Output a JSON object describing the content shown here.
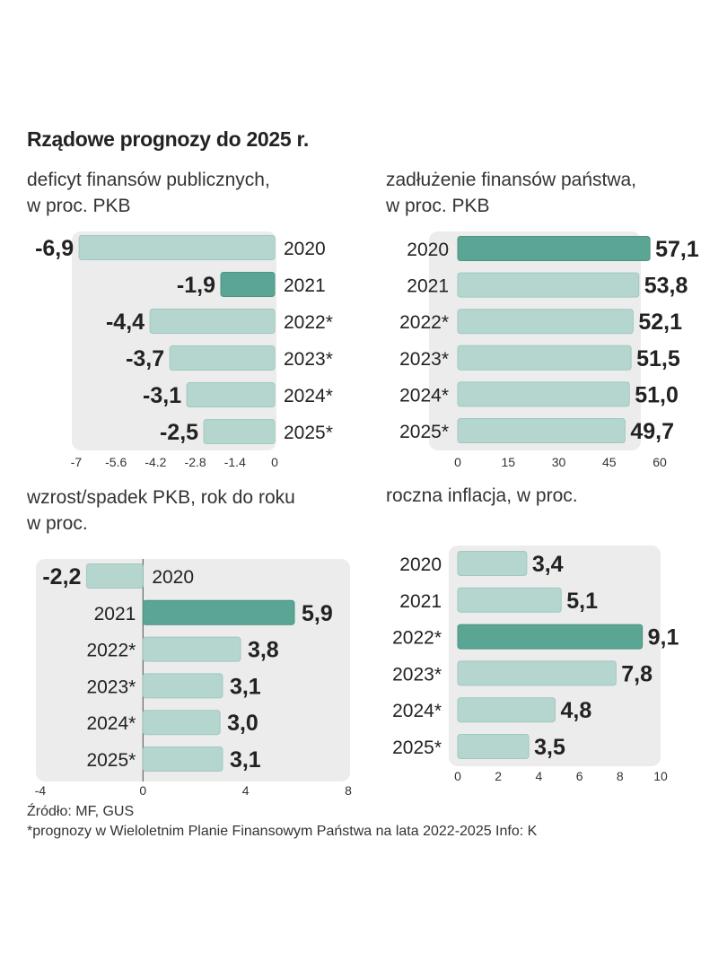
{
  "title": "Rządowe prognozy do 2025 r.",
  "palette": {
    "bar": "#b5d6cf",
    "bar_highlight": "#5aa593",
    "bar_edge": "#9ec9bf",
    "panel": "#ececec"
  },
  "chart_data": [
    {
      "id": "deficit",
      "type": "bar",
      "orientation": "horizontal",
      "subtitle_line1": "deficyt  finansów publicznych,",
      "subtitle_line2": "w proc. PKB",
      "categories": [
        "2020",
        "2021",
        "2022*",
        "2023*",
        "2024*",
        "2025*"
      ],
      "values": [
        -6.9,
        -1.9,
        -4.4,
        -3.7,
        -3.1,
        -2.5
      ],
      "value_labels": [
        "-6,9",
        "-1,9",
        "-4,4",
        "-3,7",
        "-3,1",
        "-2,5"
      ],
      "highlight_index": 1,
      "xlim": [
        -7,
        0
      ],
      "ticks": [
        -7,
        -5.6,
        -4.2,
        -2.8,
        -1.4,
        0
      ],
      "tick_labels": [
        "-7",
        "-5.6",
        "-4.2",
        "-2.8",
        "-1.4",
        "0"
      ]
    },
    {
      "id": "debt",
      "type": "bar",
      "orientation": "horizontal",
      "subtitle_line1": "zadłużenie finansów państwa,",
      "subtitle_line2": "w proc. PKB",
      "categories": [
        "2020",
        "2021",
        "2022*",
        "2023*",
        "2024*",
        "2025*"
      ],
      "values": [
        57.1,
        53.8,
        52.1,
        51.5,
        51.0,
        49.7
      ],
      "value_labels": [
        "57,1",
        "53,8",
        "52,1",
        "51,5",
        "51,0",
        "49,7"
      ],
      "highlight_index": 0,
      "xlim": [
        0,
        60
      ],
      "ticks": [
        0,
        15,
        30,
        45,
        60
      ],
      "tick_labels": [
        "0",
        "15",
        "30",
        "45",
        "60"
      ]
    },
    {
      "id": "gdp",
      "type": "bar",
      "orientation": "horizontal",
      "subtitle_line1": "wzrost/spadek PKB, rok do roku",
      "subtitle_line2": "w proc.",
      "categories": [
        "2020",
        "2021",
        "2022*",
        "2023*",
        "2024*",
        "2025*"
      ],
      "values": [
        -2.2,
        5.9,
        3.8,
        3.1,
        3.0,
        3.1
      ],
      "value_labels": [
        "-2,2",
        "5,9",
        "3,8",
        "3,1",
        "3,0",
        "3,1"
      ],
      "highlight_index": 1,
      "xlim": [
        -4,
        8
      ],
      "ticks": [
        -4,
        0,
        4,
        8
      ],
      "tick_labels": [
        "-4",
        "0",
        "4",
        "8"
      ]
    },
    {
      "id": "inflation",
      "type": "bar",
      "orientation": "horizontal",
      "subtitle_line1": "roczna inflacja, w proc.",
      "subtitle_line2": "",
      "categories": [
        "2020",
        "2021",
        "2022*",
        "2023*",
        "2024*",
        "2025*"
      ],
      "values": [
        3.4,
        5.1,
        9.1,
        7.8,
        4.8,
        3.5
      ],
      "value_labels": [
        "3,4",
        "5,1",
        "9,1",
        "7,8",
        "4,8",
        "3,5"
      ],
      "highlight_index": 2,
      "xlim": [
        0,
        10
      ],
      "ticks": [
        0,
        2,
        4,
        6,
        8,
        10
      ],
      "tick_labels": [
        "0",
        "2",
        "4",
        "6",
        "8",
        "10"
      ]
    }
  ],
  "footer": {
    "source": "Źródło: MF, GUS",
    "note": "*prognozy w Wieloletnim Planie Finansowym Państwa na lata 2022-2025  Info: K"
  }
}
